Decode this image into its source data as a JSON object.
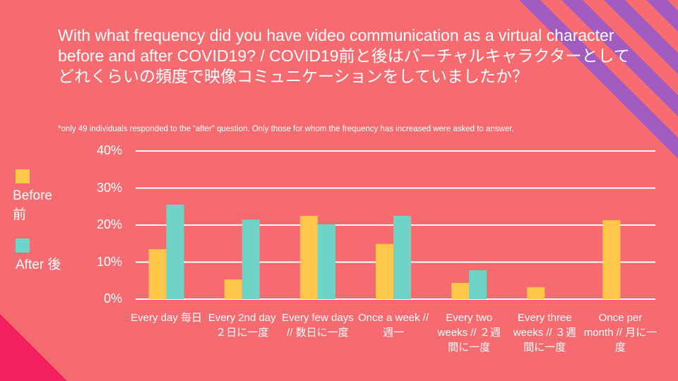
{
  "chart_data": {
    "type": "bar",
    "title": "With what frequency did you have video communication as a virtual character before and after COVID19? / COVID19前と後はバーチャルキャラクターとしてどれくらいの頻度で映像コミュニケーションをしていましたか？",
    "subtitle": "*only 49 individuals responded to the “after” question. Only those for whom the frequency has increased were asked to answer.",
    "categories": [
      "Every day 毎日",
      "Every 2nd day ２日に一度",
      "Every few days // 数日に一度",
      "Once a week // 週一",
      "Every two weeks // ２週間に一度",
      "Every three weeks // ３週間に一度",
      "Once per month // 月に一度"
    ],
    "series": [
      {
        "name": "Before 前",
        "color": "#ffc84b",
        "values": [
          13.5,
          5.3,
          22.5,
          14.9,
          4.4,
          3.2,
          21.3
        ]
      },
      {
        "name": "After 後",
        "color": "#6fd4c8",
        "values": [
          25.5,
          21.5,
          20.2,
          22.5,
          7.8,
          0,
          0
        ]
      }
    ],
    "ylim": [
      0,
      40
    ],
    "yticks": [
      {
        "value": 0,
        "label": "0%"
      },
      {
        "value": 10,
        "label": "10%"
      },
      {
        "value": 20,
        "label": "20%"
      },
      {
        "value": 30,
        "label": "30%"
      },
      {
        "value": 40,
        "label": "40%"
      }
    ],
    "grid": true
  }
}
